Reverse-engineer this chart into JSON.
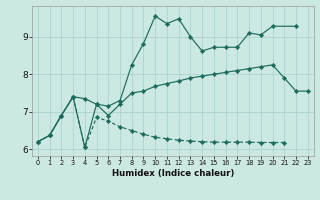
{
  "xlabel": "Humidex (Indice chaleur)",
  "bg_color": "#cce8e2",
  "line_color": "#1c6b5c",
  "grid_color": "#aad4cc",
  "xlim": [
    -0.5,
    23.5
  ],
  "ylim": [
    5.82,
    9.82
  ],
  "xticks": [
    0,
    1,
    2,
    3,
    4,
    5,
    6,
    7,
    8,
    9,
    10,
    11,
    12,
    13,
    14,
    15,
    16,
    17,
    18,
    19,
    20,
    21,
    22,
    23
  ],
  "yticks": [
    6,
    7,
    8,
    9
  ],
  "s1_x": [
    0,
    1,
    2,
    3,
    4,
    5,
    6,
    7,
    8,
    9,
    10,
    11,
    12,
    13,
    14,
    15,
    16,
    17,
    18,
    19,
    20,
    22
  ],
  "s1_y": [
    6.2,
    6.37,
    6.9,
    7.4,
    6.05,
    7.2,
    7.15,
    7.3,
    8.25,
    8.82,
    9.55,
    9.35,
    9.48,
    9.0,
    8.62,
    8.72,
    8.72,
    8.72,
    9.1,
    9.05,
    9.28,
    9.28
  ],
  "s2_x": [
    0,
    1,
    2,
    3,
    4,
    5,
    6,
    7,
    8,
    9,
    10,
    11,
    12,
    13,
    14,
    15,
    16,
    17,
    18,
    19,
    20,
    21,
    22,
    23
  ],
  "s2_y": [
    6.2,
    6.37,
    6.9,
    7.4,
    7.35,
    7.2,
    6.9,
    7.2,
    7.5,
    7.55,
    7.68,
    7.75,
    7.82,
    7.9,
    7.95,
    8.0,
    8.05,
    8.1,
    8.15,
    8.2,
    8.25,
    7.9,
    7.55,
    7.55
  ],
  "s3_x": [
    0,
    1,
    2,
    3,
    4,
    5,
    6,
    7,
    8,
    9,
    10,
    11,
    12,
    13,
    14,
    15,
    16,
    17,
    18,
    19,
    20,
    21
  ],
  "s3_y": [
    6.2,
    6.37,
    6.9,
    7.4,
    6.05,
    6.85,
    6.75,
    6.6,
    6.5,
    6.4,
    6.32,
    6.28,
    6.24,
    6.22,
    6.2,
    6.19,
    6.19,
    6.19,
    6.19,
    6.18,
    6.18,
    6.18
  ]
}
